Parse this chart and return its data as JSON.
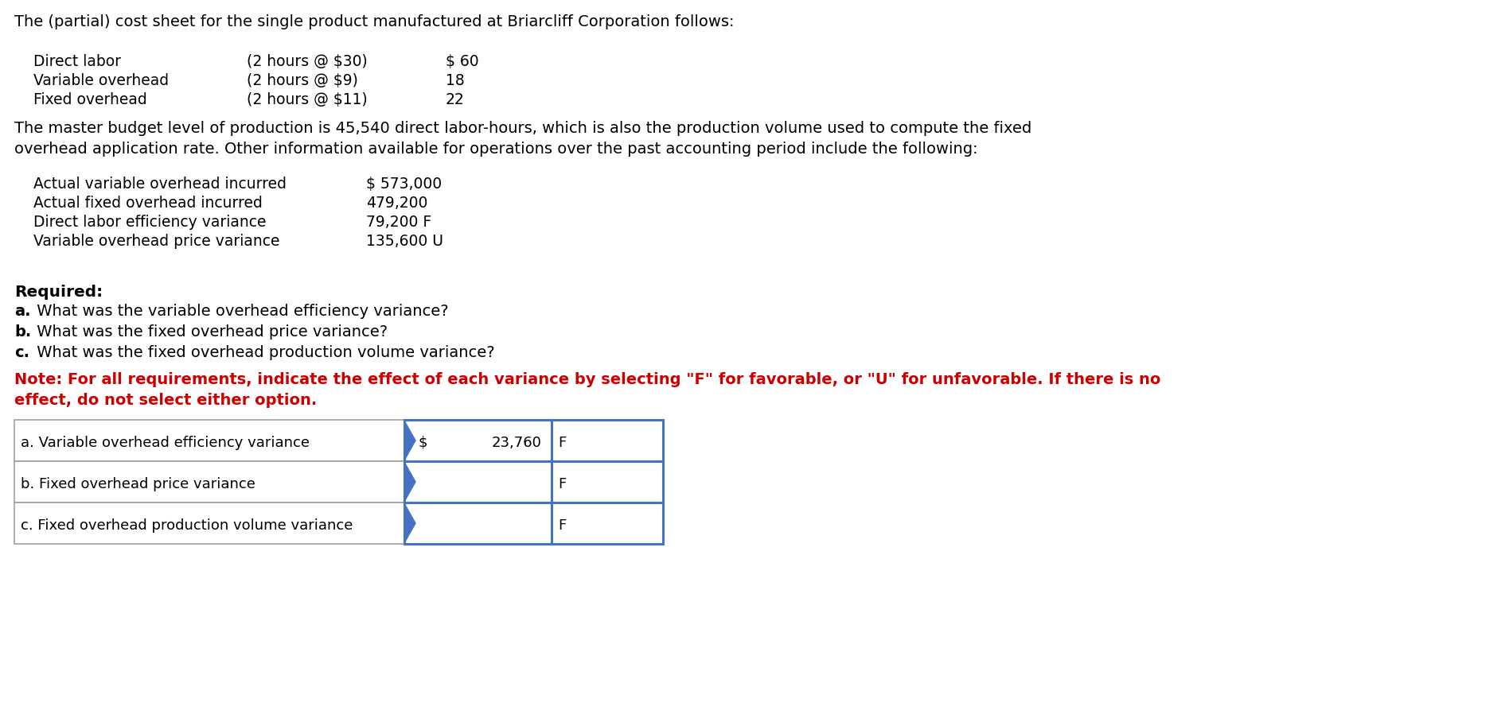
{
  "title_line": "The (partial) cost sheet for the single product manufactured at Briarcliff Corporation follows:",
  "cost_sheet_rows": [
    {
      "label": "Direct labor",
      "detail": "(2 hours @ $30)",
      "value": "$ 60"
    },
    {
      "label": "Variable overhead",
      "detail": "(2 hours @ $9)",
      "value": "18"
    },
    {
      "label": "Fixed overhead",
      "detail": "(2 hours @ $11)",
      "value": "22"
    }
  ],
  "para_line1": "The master budget level of production is 45,540 direct labor-hours, which is also the production volume used to compute the fixed",
  "para_line2": "overhead application rate. Other information available for operations over the past accounting period include the following:",
  "info_rows": [
    {
      "label": "Actual variable overhead incurred",
      "value": "$ 573,000"
    },
    {
      "label": "Actual fixed overhead incurred",
      "value": "479,200"
    },
    {
      "label": "Direct labor efficiency variance",
      "value": "79,200 F"
    },
    {
      "label": "Variable overhead price variance",
      "value": "135,600 U"
    }
  ],
  "required_label": "Required:",
  "questions": [
    {
      "prefix": "a.",
      "rest": " What was the variable overhead efficiency variance?"
    },
    {
      "prefix": "b.",
      "rest": " What was the fixed overhead price variance?"
    },
    {
      "prefix": "c.",
      "rest": " What was the fixed overhead production volume variance?"
    }
  ],
  "note_line1": "Note: For all requirements, indicate the effect of each variance by selecting \"F\" for favorable, or \"U\" for unfavorable. If there is no",
  "note_line2": "effect, do not select either option.",
  "answer_rows": [
    {
      "label": "a. Variable overhead efficiency variance",
      "dollar": "$",
      "amount": "23,760",
      "fu": "F"
    },
    {
      "label": "b. Fixed overhead price variance",
      "dollar": "",
      "amount": "",
      "fu": "F"
    },
    {
      "label": "c. Fixed overhead production volume variance",
      "dollar": "",
      "amount": "",
      "fu": "F"
    }
  ],
  "bg_color": "#ffffff",
  "note_color": "#cc0000",
  "table_border_color": "#4472c4"
}
